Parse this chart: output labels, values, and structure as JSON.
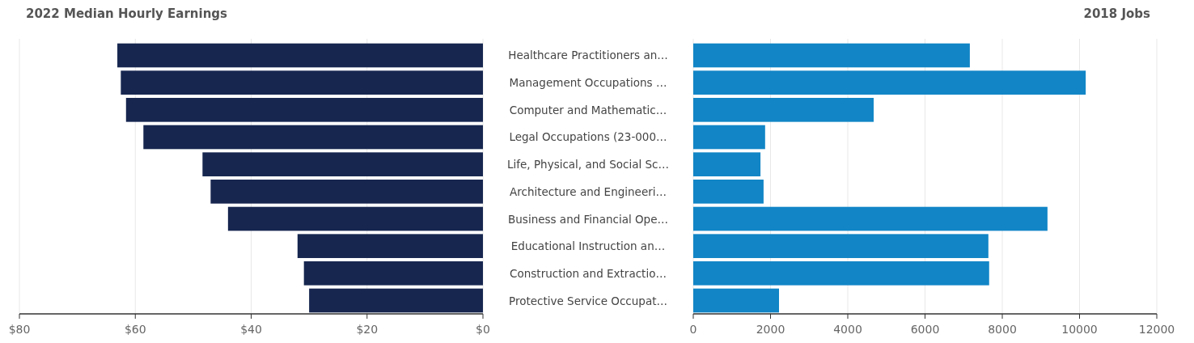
{
  "chart_data": [
    {
      "type": "bar",
      "orientation": "horizontal",
      "title": "2022 Median Hourly Earnings",
      "categories": [
        "Healthcare Practitioners an…",
        "Management Occupations …",
        "Computer and Mathematic…",
        "Legal Occupations (23-000…",
        "Life, Physical, and Social Sc…",
        "Architecture and Engineeri…",
        "Business and Financial Ope…",
        "Educational Instruction an…",
        "Construction and Extractio…",
        "Protective Service Occupat…"
      ],
      "values": [
        63.1,
        62.5,
        61.6,
        58.6,
        48.4,
        47.0,
        44.0,
        32.0,
        30.9,
        30.0
      ],
      "color": "#16264f",
      "xlim": [
        80,
        0
      ],
      "xticks": [
        {
          "value": 80,
          "label": "$80"
        },
        {
          "value": 60,
          "label": "$60"
        },
        {
          "value": 40,
          "label": "$40"
        },
        {
          "value": 20,
          "label": "$20"
        },
        {
          "value": 0,
          "label": "$0"
        }
      ],
      "grid": "x"
    },
    {
      "type": "bar",
      "orientation": "horizontal",
      "title": "2018 Jobs",
      "values": [
        7160,
        10160,
        4670,
        1860,
        1740,
        1820,
        9170,
        7640,
        7660,
        2220
      ],
      "color": "#1185c6",
      "xlim": [
        0,
        12000
      ],
      "xticks": [
        0,
        2000,
        4000,
        6000,
        8000,
        10000,
        12000
      ],
      "grid": "x",
      "tick_labels": "x"
    }
  ]
}
